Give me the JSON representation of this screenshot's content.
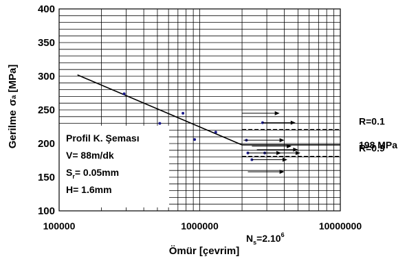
{
  "chart_data": {
    "type": "scatter",
    "xlabel": "Ömür [çevrim]",
    "ylabel_main": "Gerilme",
    "ylabel_symbol": "σ",
    "ylabel_sub": "a",
    "ylabel_unit": "[MPa]",
    "xscale": "log",
    "xlim": [
      100000,
      10000000
    ],
    "ylim": [
      100,
      400
    ],
    "xtick_labels": [
      "100000",
      "1000000",
      "10000000"
    ],
    "ytick_labels": [
      "100",
      "150",
      "200",
      "250",
      "300",
      "350",
      "400"
    ],
    "grid": true,
    "legend_box": {
      "lines": [
        "Profil K. Şeması",
        "V= 88m/dk",
        "S",
        "r",
        "= 0.05mm",
        "H= 1.6mm"
      ]
    },
    "data_points": [
      {
        "x": 290000,
        "y": 274
      },
      {
        "x": 520000,
        "y": 230
      },
      {
        "x": 760000,
        "y": 245
      },
      {
        "x": 920000,
        "y": 206
      },
      {
        "x": 1300000,
        "y": 217
      },
      {
        "x": 2150000,
        "y": 205
      },
      {
        "x": 2200000,
        "y": 186
      },
      {
        "x": 2350000,
        "y": 176
      },
      {
        "x": 2800000,
        "y": 231
      },
      {
        "x": 2900000,
        "y": 186
      }
    ],
    "runouts": [
      {
        "x": 2000000,
        "y": 245,
        "x_end": 3700000
      },
      {
        "x": 2800000,
        "y": 231,
        "x_end": 4800000
      },
      {
        "x": 2050000,
        "y": 205,
        "x_end": 4000000
      },
      {
        "x": 2350000,
        "y": 196,
        "x_end": 4500000
      },
      {
        "x": 2550000,
        "y": 191,
        "x_end": 5000000
      },
      {
        "x": 2200000,
        "y": 186,
        "x_end": 3800000
      },
      {
        "x": 2900000,
        "y": 186,
        "x_end": 5200000
      },
      {
        "x": 2350000,
        "y": 176,
        "x_end": 4200000
      },
      {
        "x": 2200000,
        "y": 158,
        "x_end": 4000000
      }
    ],
    "fit_line": {
      "x": [
        135000,
        2000000
      ],
      "y": [
        302,
        198
      ]
    },
    "hlines": [
      {
        "y": 221,
        "label": "R=0.1",
        "style": "dashed"
      },
      {
        "y": 198,
        "label": "198 MPa",
        "style": "solid"
      },
      {
        "y": 181,
        "label": "R=0.9",
        "style": "dashed"
      }
    ],
    "ns_label": "N",
    "ns_sub": "s",
    "ns_value": "=2.10",
    "ns_exp": "6",
    "colors": {
      "points": "#1a1a8c",
      "lines": "#000000",
      "grid": "#000000"
    }
  }
}
